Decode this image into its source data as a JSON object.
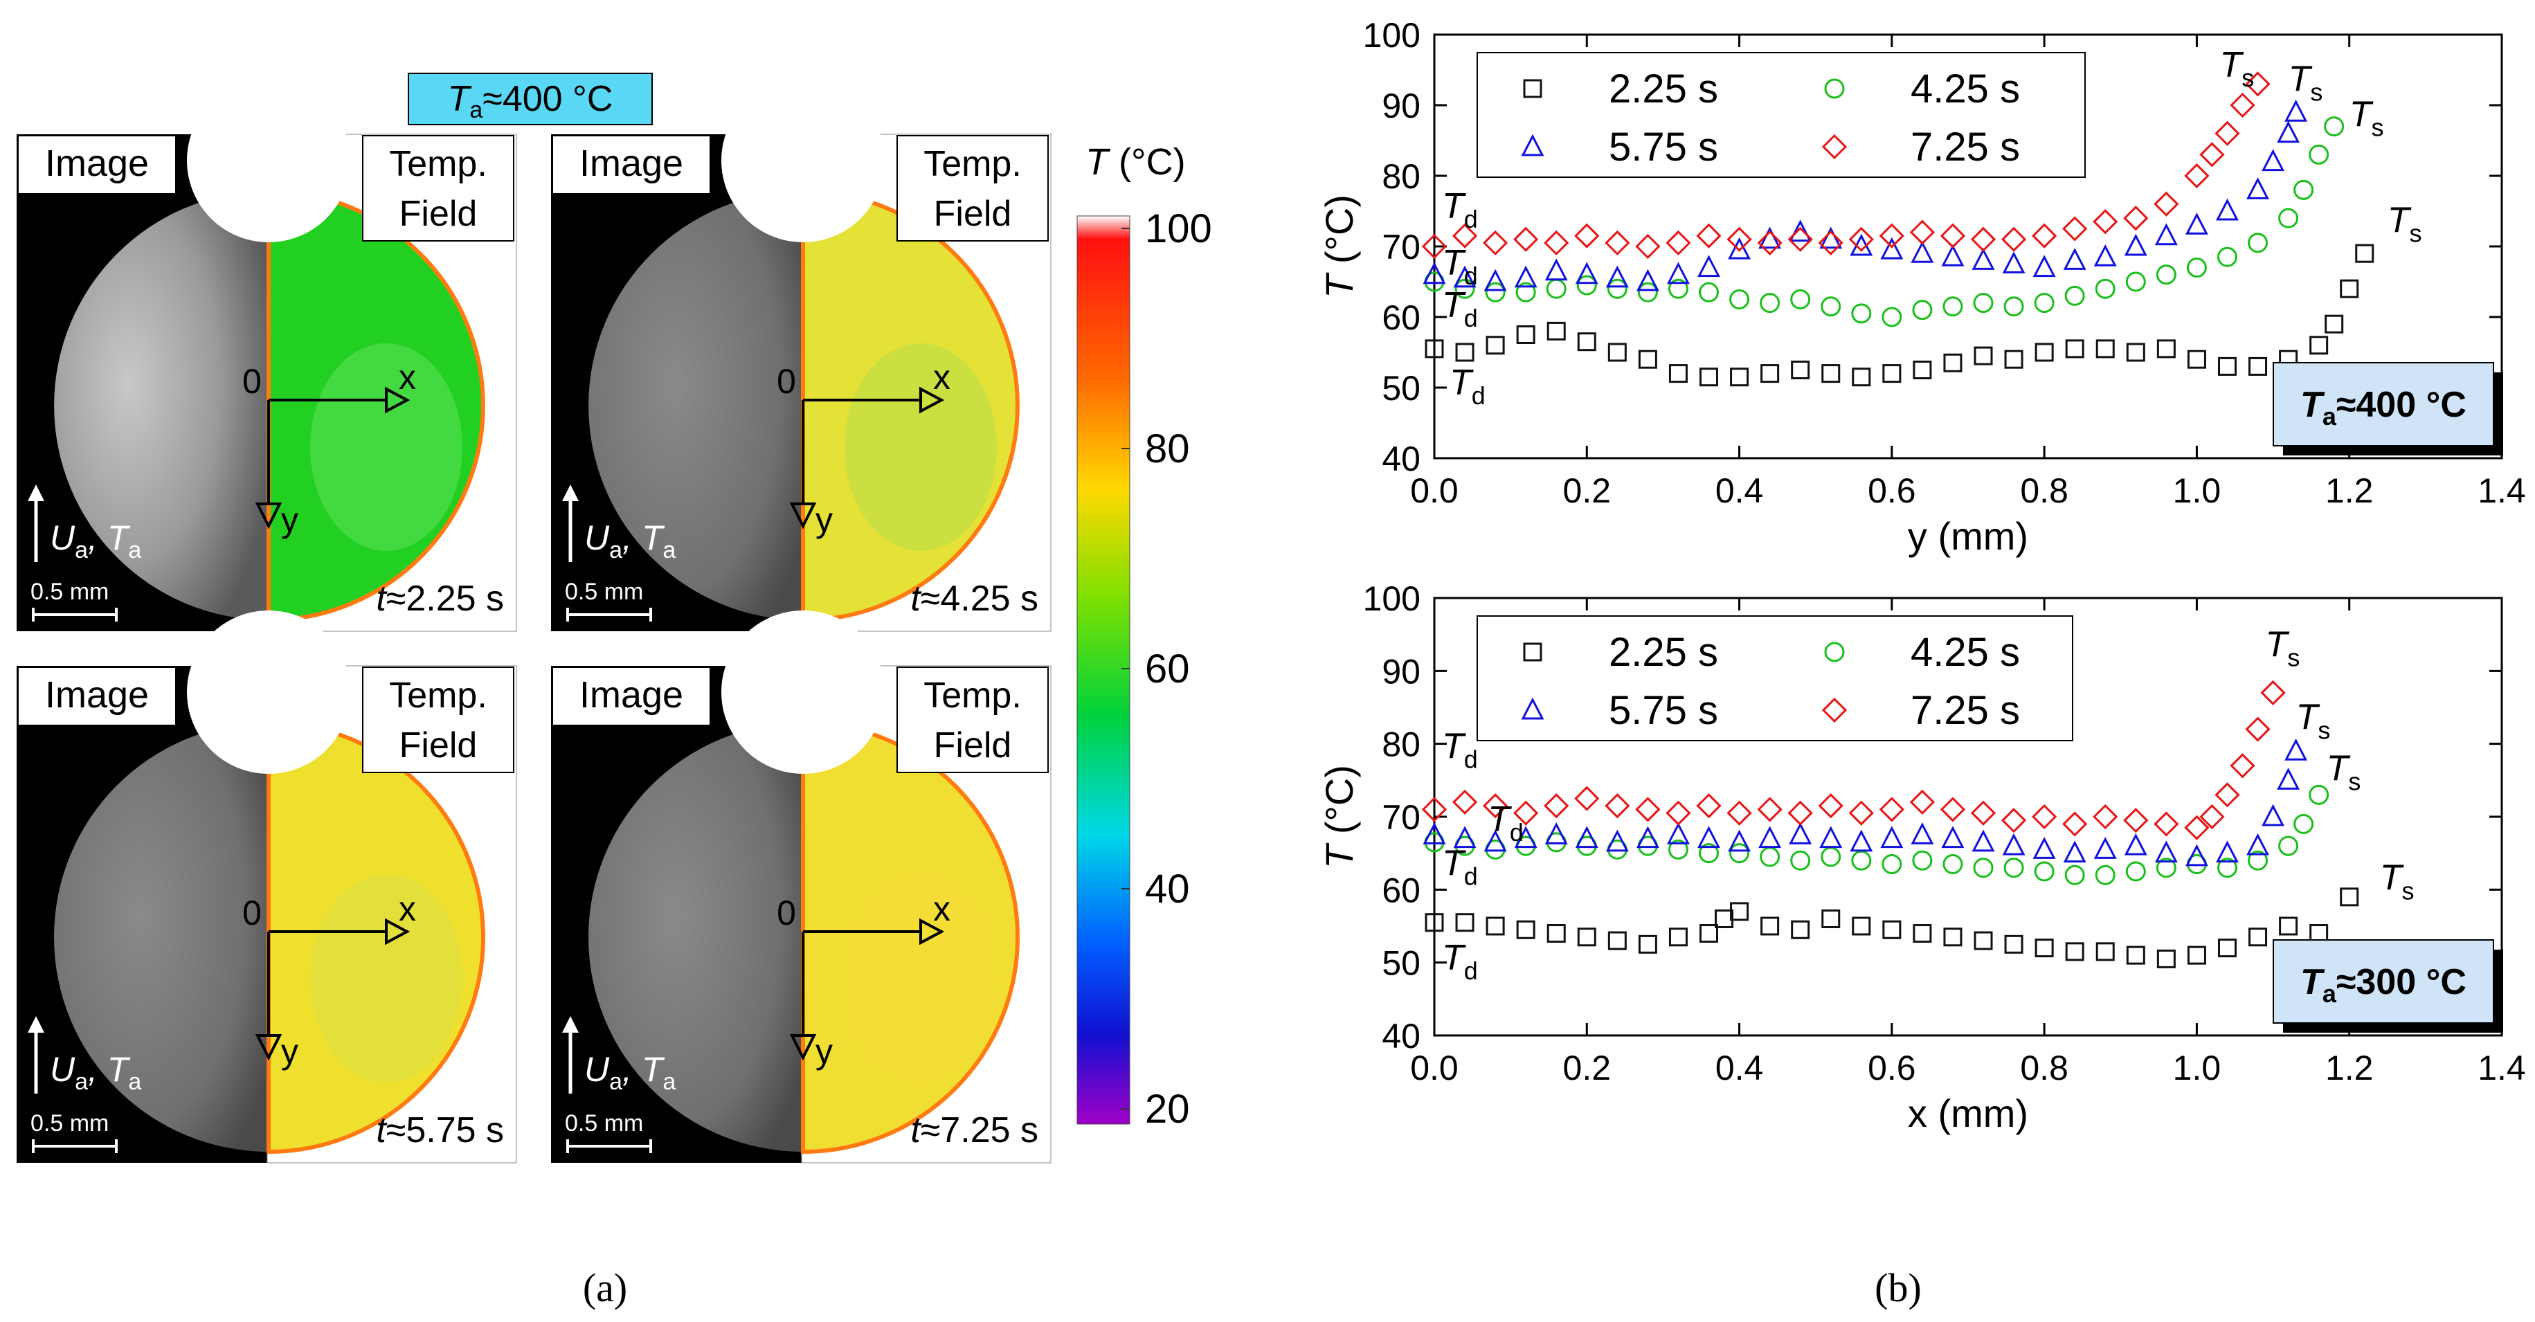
{
  "panel_a": {
    "header_label": "T",
    "header_sub": "a",
    "header_rest": "≈400 °C",
    "image_label": "Image",
    "temp_field_line1": "Temp.",
    "temp_field_line2": "Field",
    "axis_origin": "0",
    "axis_x": "x",
    "axis_y": "y",
    "flow_label": "U",
    "flow_label_sub": "a",
    "flow_label_mid": ", T",
    "flow_label_sub2": "a",
    "scale_bar_label": "0.5 mm",
    "subpanels": [
      {
        "time": "≈2.25 s",
        "field_color": "#22d022",
        "field_tint": "#5ee05a"
      },
      {
        "time": "≈4.25 s",
        "field_color": "#e4e236",
        "field_tint": "#b7dc4a"
      },
      {
        "time": "≈5.75 s",
        "field_color": "#efe02e",
        "field_tint": "#d9e049"
      },
      {
        "time": "≈7.25 s",
        "field_color": "#f1de32",
        "field_tint": "#f5df3a"
      }
    ],
    "time_prefix": "t",
    "colorbar": {
      "title_T": "T",
      "title_unit": " (°C)",
      "ticks": [
        "100",
        "80",
        "60",
        "40",
        "20"
      ],
      "min": 20,
      "max": 100
    },
    "caption": "(a)"
  },
  "panel_b": {
    "caption": "(b)",
    "legend": [
      {
        "label": "2.25 s",
        "marker": "square",
        "color": "#111111"
      },
      {
        "label": "4.25 s",
        "marker": "circle",
        "color": "#1bbf1b"
      },
      {
        "label": "5.75 s",
        "marker": "triangle",
        "color": "#1010e0"
      },
      {
        "label": "7.25 s",
        "marker": "diamond",
        "color": "#e81414"
      }
    ]
  },
  "chart_data": [
    {
      "type": "scatter",
      "xlabel": "y (mm)",
      "ylabel_T": "T",
      "ylabel_unit": " (°C)",
      "xlim": [
        0.0,
        1.4
      ],
      "ylim": [
        40,
        100
      ],
      "xticks": [
        "0.0",
        "0.2",
        "0.4",
        "0.6",
        "0.8",
        "1.0",
        "1.2",
        "1.4"
      ],
      "yticks": [
        "40",
        "50",
        "60",
        "70",
        "80",
        "90",
        "100"
      ],
      "badge": {
        "T": "T",
        "sub": "a",
        "rest": "≈400 °C"
      },
      "annotations": [
        {
          "text": "T",
          "sub": "s",
          "x": 1.03,
          "y": 94
        },
        {
          "text": "T",
          "sub": "s",
          "x": 1.12,
          "y": 92
        },
        {
          "text": "T",
          "sub": "s",
          "x": 1.2,
          "y": 87
        },
        {
          "text": "T",
          "sub": "s",
          "x": 1.25,
          "y": 72
        },
        {
          "text": "T",
          "sub": "d",
          "x": 0.01,
          "y": 74
        },
        {
          "text": "T",
          "sub": "d",
          "x": 0.01,
          "y": 66
        },
        {
          "text": "T",
          "sub": "d",
          "x": 0.01,
          "y": 60
        },
        {
          "text": "T",
          "sub": "d",
          "x": 0.02,
          "y": 49
        }
      ],
      "series": [
        {
          "name": "2.25 s",
          "marker": "square",
          "color": "#111111",
          "x": [
            0.0,
            0.04,
            0.08,
            0.12,
            0.16,
            0.2,
            0.24,
            0.28,
            0.32,
            0.36,
            0.4,
            0.44,
            0.48,
            0.52,
            0.56,
            0.6,
            0.64,
            0.68,
            0.72,
            0.76,
            0.8,
            0.84,
            0.88,
            0.92,
            0.96,
            1.0,
            1.04,
            1.08,
            1.12,
            1.16,
            1.18,
            1.2,
            1.22
          ],
          "y": [
            55.5,
            55,
            56,
            57.5,
            58,
            56.5,
            55,
            54,
            52,
            51.5,
            51.5,
            52,
            52.5,
            52,
            51.5,
            52,
            52.5,
            53.5,
            54.5,
            54,
            55,
            55.5,
            55.5,
            55,
            55.5,
            54,
            53,
            53,
            54,
            56,
            59,
            64,
            69
          ]
        },
        {
          "name": "4.25 s",
          "marker": "circle",
          "color": "#1bbf1b",
          "x": [
            0.0,
            0.04,
            0.08,
            0.12,
            0.16,
            0.2,
            0.24,
            0.28,
            0.32,
            0.36,
            0.4,
            0.44,
            0.48,
            0.52,
            0.56,
            0.6,
            0.64,
            0.68,
            0.72,
            0.76,
            0.8,
            0.84,
            0.88,
            0.92,
            0.96,
            1.0,
            1.04,
            1.08,
            1.12,
            1.14,
            1.16,
            1.18
          ],
          "y": [
            65,
            64,
            63.5,
            63.5,
            64,
            64.5,
            64,
            63.5,
            64,
            63.5,
            62.5,
            62,
            62.5,
            61.5,
            60.5,
            60,
            61,
            61.5,
            62,
            61.5,
            62,
            63,
            64,
            65,
            66,
            67,
            68.5,
            70.5,
            74,
            78,
            83,
            87
          ]
        },
        {
          "name": "5.75 s",
          "marker": "triangle",
          "color": "#1010e0",
          "x": [
            0.0,
            0.04,
            0.08,
            0.12,
            0.16,
            0.2,
            0.24,
            0.28,
            0.32,
            0.36,
            0.4,
            0.44,
            0.48,
            0.52,
            0.56,
            0.6,
            0.64,
            0.68,
            0.72,
            0.76,
            0.8,
            0.84,
            0.88,
            0.92,
            0.96,
            1.0,
            1.04,
            1.08,
            1.1,
            1.12,
            1.13
          ],
          "y": [
            66,
            65.5,
            65,
            65.5,
            66.5,
            66,
            65.5,
            65,
            66,
            67,
            69.5,
            71,
            72,
            71,
            70,
            69.5,
            69,
            68.5,
            68,
            67.5,
            67,
            68,
            68.5,
            70,
            71.5,
            73,
            75,
            78,
            82,
            86,
            89
          ]
        },
        {
          "name": "7.25 s",
          "marker": "diamond",
          "color": "#e81414",
          "x": [
            0.0,
            0.04,
            0.08,
            0.12,
            0.16,
            0.2,
            0.24,
            0.28,
            0.32,
            0.36,
            0.4,
            0.44,
            0.48,
            0.52,
            0.56,
            0.6,
            0.64,
            0.68,
            0.72,
            0.76,
            0.8,
            0.84,
            0.88,
            0.92,
            0.96,
            1.0,
            1.02,
            1.04,
            1.06,
            1.08
          ],
          "y": [
            70,
            71.5,
            70.5,
            71,
            70.5,
            71.5,
            70.5,
            70,
            70.5,
            71.5,
            71,
            70.5,
            71,
            70.5,
            71,
            71.5,
            72,
            71.5,
            71,
            71,
            71.5,
            72.5,
            73.5,
            74,
            76,
            80,
            83,
            86,
            90,
            93
          ]
        }
      ]
    },
    {
      "type": "scatter",
      "xlabel": "x (mm)",
      "ylabel_T": "T",
      "ylabel_unit": " (°C)",
      "xlim": [
        0.0,
        1.4
      ],
      "ylim": [
        40,
        100
      ],
      "xticks": [
        "0.0",
        "0.2",
        "0.4",
        "0.6",
        "0.8",
        "1.0",
        "1.2",
        "1.4"
      ],
      "yticks": [
        "40",
        "50",
        "60",
        "70",
        "80",
        "90",
        "100"
      ],
      "badge": {
        "T": "T",
        "sub": "a",
        "rest": "≈300 °C"
      },
      "annotations": [
        {
          "text": "T",
          "sub": "s",
          "x": 1.09,
          "y": 92
        },
        {
          "text": "T",
          "sub": "s",
          "x": 1.13,
          "y": 82
        },
        {
          "text": "T",
          "sub": "s",
          "x": 1.17,
          "y": 75
        },
        {
          "text": "T",
          "sub": "s",
          "x": 1.24,
          "y": 60
        },
        {
          "text": "T",
          "sub": "d",
          "x": 0.01,
          "y": 78
        },
        {
          "text": "T",
          "sub": "d",
          "x": 0.07,
          "y": 68
        },
        {
          "text": "T",
          "sub": "d",
          "x": 0.01,
          "y": 62
        },
        {
          "text": "T",
          "sub": "d",
          "x": 0.01,
          "y": 49
        }
      ],
      "series": [
        {
          "name": "2.25 s",
          "marker": "square",
          "color": "#111111",
          "x": [
            0.0,
            0.04,
            0.08,
            0.12,
            0.16,
            0.2,
            0.24,
            0.28,
            0.32,
            0.36,
            0.38,
            0.4,
            0.44,
            0.48,
            0.52,
            0.56,
            0.6,
            0.64,
            0.68,
            0.72,
            0.76,
            0.8,
            0.84,
            0.88,
            0.92,
            0.96,
            1.0,
            1.04,
            1.08,
            1.12,
            1.16,
            1.2
          ],
          "y": [
            55.5,
            55.5,
            55,
            54.5,
            54,
            53.5,
            53,
            52.5,
            53.5,
            54,
            56,
            57,
            55,
            54.5,
            56,
            55,
            54.5,
            54,
            53.5,
            53,
            52.5,
            52,
            51.5,
            51.5,
            51,
            50.5,
            51,
            52,
            53.5,
            55,
            54,
            59
          ]
        },
        {
          "name": "4.25 s",
          "marker": "circle",
          "color": "#1bbf1b",
          "x": [
            0.0,
            0.04,
            0.08,
            0.12,
            0.16,
            0.2,
            0.24,
            0.28,
            0.32,
            0.36,
            0.4,
            0.44,
            0.48,
            0.52,
            0.56,
            0.6,
            0.64,
            0.68,
            0.72,
            0.76,
            0.8,
            0.84,
            0.88,
            0.92,
            0.96,
            1.0,
            1.04,
            1.08,
            1.12,
            1.14,
            1.16
          ],
          "y": [
            66.5,
            66,
            65.5,
            66,
            66.5,
            66,
            65.5,
            66,
            65.5,
            65,
            65,
            64.5,
            64,
            64.5,
            64,
            63.5,
            64,
            63.5,
            63,
            63,
            62.5,
            62,
            62,
            62.5,
            63,
            63.5,
            63,
            64,
            66,
            69,
            73
          ]
        },
        {
          "name": "5.75 s",
          "marker": "triangle",
          "color": "#1010e0",
          "x": [
            0.0,
            0.04,
            0.08,
            0.12,
            0.16,
            0.2,
            0.24,
            0.28,
            0.32,
            0.36,
            0.4,
            0.44,
            0.48,
            0.52,
            0.56,
            0.6,
            0.64,
            0.68,
            0.72,
            0.76,
            0.8,
            0.84,
            0.88,
            0.92,
            0.96,
            1.0,
            1.04,
            1.08,
            1.1,
            1.12,
            1.13
          ],
          "y": [
            67.5,
            67,
            66.5,
            67,
            67.5,
            67,
            66.5,
            67,
            67.5,
            67,
            66.5,
            67,
            67.5,
            67,
            66.5,
            67,
            67.5,
            67,
            66.5,
            66,
            65.5,
            65,
            65.5,
            66,
            65,
            64.5,
            65,
            66,
            70,
            75,
            79
          ]
        },
        {
          "name": "7.25 s",
          "marker": "diamond",
          "color": "#e81414",
          "x": [
            0.0,
            0.04,
            0.08,
            0.12,
            0.16,
            0.2,
            0.24,
            0.28,
            0.32,
            0.36,
            0.4,
            0.44,
            0.48,
            0.52,
            0.56,
            0.6,
            0.64,
            0.68,
            0.72,
            0.76,
            0.8,
            0.84,
            0.88,
            0.92,
            0.96,
            1.0,
            1.02,
            1.04,
            1.06,
            1.08,
            1.1
          ],
          "y": [
            71,
            72,
            71.5,
            70.5,
            71.5,
            72.5,
            71.5,
            71,
            70.5,
            71.5,
            70.5,
            71,
            70.5,
            71.5,
            70.5,
            71,
            72,
            71,
            70.5,
            69.5,
            70,
            69,
            70,
            69.5,
            69,
            68.5,
            70,
            73,
            77,
            82,
            87
          ]
        }
      ]
    }
  ]
}
